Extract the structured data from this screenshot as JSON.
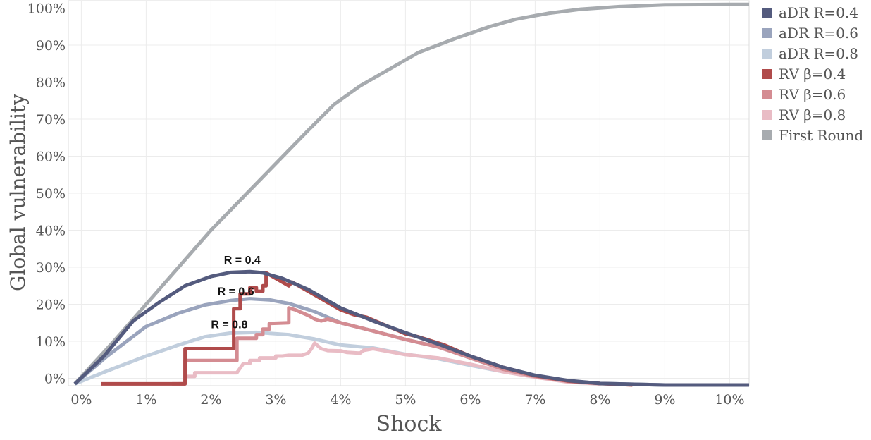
{
  "chart_data": {
    "type": "line",
    "title": "",
    "xlabel": "Shock",
    "ylabel": "Global vulnerability",
    "xlim": [
      -0.2,
      10.3
    ],
    "ylim": [
      -2,
      102
    ],
    "x_ticks": [
      0,
      1,
      2,
      3,
      4,
      5,
      6,
      7,
      8,
      9,
      10
    ],
    "x_tick_labels": [
      "0%",
      "1%",
      "2%",
      "3%",
      "4%",
      "5%",
      "6%",
      "7%",
      "8%",
      "9%",
      "10%"
    ],
    "y_ticks": [
      0,
      10,
      20,
      30,
      40,
      50,
      60,
      70,
      80,
      90,
      100
    ],
    "y_tick_labels": [
      "0%",
      "10%",
      "20%",
      "30%",
      "40%",
      "50%",
      "60%",
      "70%",
      "80%",
      "90%",
      "100%"
    ],
    "grid": true,
    "legend_position": "outside-right",
    "annotations": [
      {
        "text": "R = 0.4",
        "x": 2.2,
        "y": 31
      },
      {
        "text": "R = 0.6",
        "x": 2.1,
        "y": 22.5
      },
      {
        "text": "R = 0.8",
        "x": 2.0,
        "y": 13.5
      }
    ],
    "series": [
      {
        "name": "First Round",
        "color": "#a7abaf",
        "step": false,
        "points": [
          [
            -0.1,
            -1.5
          ],
          [
            0.5,
            10
          ],
          [
            1.0,
            20
          ],
          [
            1.5,
            30
          ],
          [
            2.0,
            40
          ],
          [
            2.5,
            49
          ],
          [
            3.0,
            58
          ],
          [
            3.5,
            67
          ],
          [
            3.9,
            74
          ],
          [
            4.3,
            79
          ],
          [
            4.8,
            84
          ],
          [
            5.2,
            88
          ],
          [
            5.8,
            92
          ],
          [
            6.3,
            95
          ],
          [
            6.7,
            97
          ],
          [
            7.2,
            98.6
          ],
          [
            7.7,
            99.7
          ],
          [
            8.3,
            100.4
          ],
          [
            9.0,
            100.9
          ],
          [
            10.0,
            101
          ],
          [
            10.3,
            101
          ]
        ]
      },
      {
        "name": "aDR R=0.8",
        "color": "#c1cedd",
        "step": false,
        "points": [
          [
            -0.1,
            -1.5
          ],
          [
            0.4,
            2
          ],
          [
            1.0,
            6
          ],
          [
            1.5,
            9
          ],
          [
            1.9,
            11.2
          ],
          [
            2.3,
            12.2
          ],
          [
            2.7,
            12.4
          ],
          [
            3.2,
            11.8
          ],
          [
            3.6,
            10.6
          ],
          [
            4.0,
            9
          ],
          [
            4.5,
            8.2
          ],
          [
            5.0,
            6.5
          ],
          [
            5.5,
            5.3
          ],
          [
            6.0,
            3.5
          ],
          [
            6.5,
            1.8
          ],
          [
            7.0,
            0.4
          ],
          [
            7.5,
            -0.8
          ],
          [
            8.0,
            -1.4
          ],
          [
            9.0,
            -1.8
          ],
          [
            10.3,
            -1.8
          ]
        ]
      },
      {
        "name": "aDR R=0.6",
        "color": "#9aa4bd",
        "step": false,
        "points": [
          [
            -0.1,
            -1.5
          ],
          [
            0.4,
            6
          ],
          [
            1.0,
            14
          ],
          [
            1.5,
            17.6
          ],
          [
            1.9,
            19.8
          ],
          [
            2.3,
            21
          ],
          [
            2.6,
            21.5
          ],
          [
            2.9,
            21.2
          ],
          [
            3.2,
            20.2
          ],
          [
            3.6,
            18
          ],
          [
            4.0,
            15
          ],
          [
            4.5,
            12.8
          ],
          [
            5.0,
            10.5
          ],
          [
            5.5,
            8.5
          ],
          [
            6.0,
            5.5
          ],
          [
            6.5,
            2.5
          ],
          [
            7.0,
            0.5
          ],
          [
            7.5,
            -0.7
          ],
          [
            8.0,
            -1.4
          ],
          [
            9.0,
            -1.8
          ],
          [
            10.3,
            -1.8
          ]
        ]
      },
      {
        "name": "RV β=0.8",
        "color": "#e9bcc5",
        "step": true,
        "points": [
          [
            1.5,
            -1.5
          ],
          [
            1.6,
            -1.5
          ],
          [
            1.6,
            0.5
          ],
          [
            1.75,
            0.5
          ],
          [
            1.75,
            1.5
          ],
          [
            2.0,
            1.5
          ],
          [
            2.4,
            1.5
          ],
          [
            2.5,
            4
          ],
          [
            2.6,
            4
          ],
          [
            2.6,
            4.8
          ],
          [
            2.75,
            4.8
          ],
          [
            2.75,
            5.5
          ],
          [
            3.0,
            5.5
          ],
          [
            3.0,
            6
          ],
          [
            3.1,
            6
          ],
          [
            3.2,
            6.2
          ],
          [
            3.4,
            6.2
          ],
          [
            3.5,
            6.8
          ],
          [
            3.55,
            8
          ],
          [
            3.6,
            9.5
          ],
          [
            3.7,
            8
          ],
          [
            3.8,
            7.5
          ],
          [
            4.0,
            7.4
          ],
          [
            4.1,
            7
          ],
          [
            4.3,
            6.8
          ],
          [
            4.35,
            7.5
          ],
          [
            4.5,
            8
          ],
          [
            5.0,
            6.4
          ],
          [
            5.5,
            5.5
          ],
          [
            6.0,
            3.8
          ],
          [
            6.5,
            1.8
          ],
          [
            7.0,
            0.3
          ],
          [
            7.5,
            -1
          ],
          [
            8.0,
            -1.5
          ]
        ]
      },
      {
        "name": "RV β=0.6",
        "color": "#d48c92",
        "step": true,
        "points": [
          [
            1.4,
            -1.5
          ],
          [
            1.6,
            -1.5
          ],
          [
            1.6,
            4.8
          ],
          [
            1.9,
            4.8
          ],
          [
            2.0,
            4.8
          ],
          [
            2.4,
            4.8
          ],
          [
            2.4,
            10.8
          ],
          [
            2.7,
            10.8
          ],
          [
            2.7,
            11.8
          ],
          [
            2.8,
            11.8
          ],
          [
            2.8,
            13.3
          ],
          [
            2.9,
            13.3
          ],
          [
            2.9,
            14.8
          ],
          [
            3.2,
            15
          ],
          [
            3.2,
            19
          ],
          [
            3.3,
            18.5
          ],
          [
            3.5,
            17
          ],
          [
            3.6,
            16
          ],
          [
            3.7,
            15.5
          ],
          [
            3.8,
            16
          ],
          [
            4.0,
            15
          ],
          [
            4.5,
            12.8
          ],
          [
            5.0,
            10.5
          ],
          [
            5.5,
            8.5
          ],
          [
            6.0,
            5.5
          ],
          [
            6.5,
            2.5
          ],
          [
            7.0,
            0.5
          ],
          [
            7.5,
            -0.8
          ],
          [
            8.0,
            -1.4
          ]
        ]
      },
      {
        "name": "RV β=0.4",
        "color": "#b04b4b",
        "step": true,
        "points": [
          [
            0.3,
            -1.5
          ],
          [
            1.0,
            -1.5
          ],
          [
            1.6,
            -1.5
          ],
          [
            1.6,
            8
          ],
          [
            2.0,
            8
          ],
          [
            2.35,
            8
          ],
          [
            2.35,
            18.8
          ],
          [
            2.45,
            18.8
          ],
          [
            2.45,
            22.8
          ],
          [
            2.6,
            22.8
          ],
          [
            2.6,
            24.5
          ],
          [
            2.7,
            24.5
          ],
          [
            2.7,
            23.5
          ],
          [
            2.8,
            23.5
          ],
          [
            2.8,
            25
          ],
          [
            2.85,
            25
          ],
          [
            2.85,
            28.5
          ],
          [
            3.0,
            27
          ],
          [
            3.2,
            25
          ],
          [
            3.25,
            26
          ],
          [
            3.5,
            23.5
          ],
          [
            3.8,
            20.5
          ],
          [
            4.0,
            18.5
          ],
          [
            4.2,
            17.2
          ],
          [
            4.4,
            16.5
          ],
          [
            4.6,
            15
          ],
          [
            4.9,
            12.8
          ],
          [
            5.0,
            12
          ],
          [
            5.2,
            11.2
          ],
          [
            5.6,
            9
          ],
          [
            6.0,
            6
          ],
          [
            6.5,
            3
          ],
          [
            7.0,
            0.7
          ],
          [
            7.5,
            -0.7
          ],
          [
            8.0,
            -1.4
          ],
          [
            8.5,
            -1.8
          ]
        ]
      },
      {
        "name": "aDR R=0.4",
        "color": "#545b7e",
        "step": false,
        "points": [
          [
            -0.1,
            -1.5
          ],
          [
            0.35,
            6
          ],
          [
            0.8,
            15.5
          ],
          [
            1.2,
            20.5
          ],
          [
            1.6,
            25
          ],
          [
            2.0,
            27.5
          ],
          [
            2.3,
            28.6
          ],
          [
            2.6,
            28.8
          ],
          [
            2.8,
            28.5
          ],
          [
            3.1,
            27
          ],
          [
            3.5,
            24
          ],
          [
            4.0,
            19
          ],
          [
            4.5,
            15.5
          ],
          [
            5.0,
            12.3
          ],
          [
            5.5,
            9.3
          ],
          [
            6.0,
            6
          ],
          [
            6.5,
            3
          ],
          [
            7.0,
            0.8
          ],
          [
            7.5,
            -0.6
          ],
          [
            8.0,
            -1.4
          ],
          [
            9.0,
            -1.8
          ],
          [
            10.3,
            -1.8
          ]
        ]
      }
    ],
    "legend": [
      {
        "label": "aDR R=0.4",
        "color": "#545b7e"
      },
      {
        "label": "aDR R=0.6",
        "color": "#9aa4bd"
      },
      {
        "label": "aDR R=0.8",
        "color": "#c1cedd"
      },
      {
        "label": "RV β=0.4",
        "color": "#b04b4b"
      },
      {
        "label": "RV β=0.6",
        "color": "#d48c92"
      },
      {
        "label": "RV β=0.8",
        "color": "#e9bcc5"
      },
      {
        "label": "First Round",
        "color": "#a7abaf"
      }
    ]
  }
}
